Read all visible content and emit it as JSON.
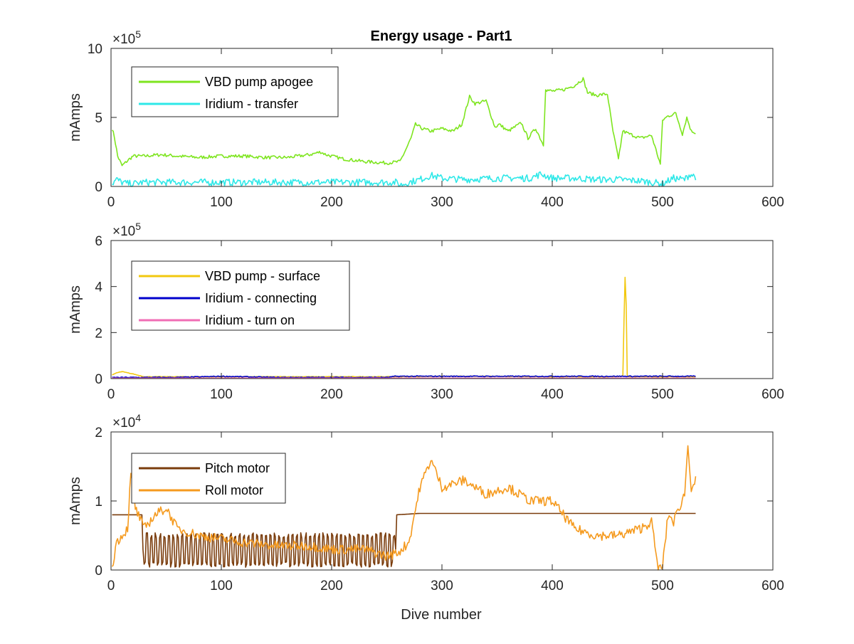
{
  "page": {
    "title": "Energy usage - Part1",
    "xlabel": "Dive number"
  },
  "chart_data": [
    {
      "type": "line",
      "title": "Energy usage - Part1",
      "xlabel": "",
      "ylabel": "mAmps",
      "xlim": [
        0,
        600
      ],
      "ylim": [
        0,
        10
      ],
      "y_exponent_label": "×10",
      "y_exponent_power": "5",
      "xticks": [
        "0",
        "100",
        "200",
        "300",
        "400",
        "500",
        "600"
      ],
      "yticks": [
        "0",
        "5",
        "10"
      ],
      "legend_position": "top-left",
      "series": [
        {
          "name": "VBD pump apogee",
          "color": "#7ee51f",
          "x": [
            1,
            3,
            6,
            10,
            14,
            20,
            30,
            45,
            60,
            80,
            100,
            120,
            140,
            160,
            180,
            190,
            195,
            200,
            210,
            230,
            250,
            262,
            268,
            272,
            276,
            282,
            290,
            300,
            310,
            318,
            325,
            330,
            340,
            348,
            352,
            360,
            372,
            378,
            385,
            392,
            394,
            400,
            410,
            420,
            428,
            432,
            440,
            450,
            455,
            460,
            464,
            470,
            480,
            490,
            498,
            500,
            505,
            512,
            518,
            522,
            526,
            530
          ],
          "values": [
            4.2,
            3.6,
            2.2,
            1.5,
            1.8,
            2.2,
            2.2,
            2.3,
            2.2,
            2.1,
            2.2,
            2.2,
            2.1,
            2.1,
            2.3,
            2.5,
            2.3,
            2.2,
            2.0,
            1.8,
            1.7,
            1.8,
            2.8,
            3.5,
            4.5,
            4.2,
            4.0,
            4.2,
            4.0,
            4.5,
            6.5,
            6.0,
            6.2,
            4.3,
            4.5,
            4.0,
            4.6,
            3.5,
            4.2,
            3.0,
            7.0,
            6.9,
            7.0,
            7.3,
            7.8,
            6.8,
            6.6,
            6.7,
            4.0,
            2.0,
            4.0,
            3.8,
            3.5,
            3.7,
            1.6,
            4.8,
            5.1,
            5.3,
            3.8,
            5.0,
            4.0,
            3.9
          ]
        },
        {
          "name": "Iridium - transfer",
          "color": "#2ee8e8",
          "x": [
            1,
            5,
            10,
            15,
            20,
            30,
            60,
            100,
            150,
            200,
            230,
            258,
            262,
            270,
            280,
            290,
            300,
            320,
            350,
            380,
            390,
            400,
            420,
            440,
            460,
            480,
            500,
            510,
            520,
            525,
            530
          ],
          "values": [
            0.2,
            0.5,
            0.3,
            0.2,
            0.2,
            0.3,
            0.3,
            0.3,
            0.3,
            0.3,
            0.3,
            0.3,
            0.1,
            0.3,
            0.5,
            0.8,
            0.6,
            0.5,
            0.6,
            0.6,
            0.9,
            0.6,
            0.6,
            0.5,
            0.5,
            0.4,
            0.2,
            0.6,
            0.5,
            0.9,
            0.7
          ]
        }
      ]
    },
    {
      "type": "line",
      "title": "",
      "xlabel": "",
      "ylabel": "mAmps",
      "xlim": [
        0,
        600
      ],
      "ylim": [
        0,
        6
      ],
      "y_exponent_label": "×10",
      "y_exponent_power": "5",
      "xticks": [
        "0",
        "100",
        "200",
        "300",
        "400",
        "500",
        "600"
      ],
      "yticks": [
        "0",
        "2",
        "4",
        "6"
      ],
      "legend_position": "top-left",
      "series": [
        {
          "name": "VBD pump - surface",
          "color": "#f2c80f",
          "x": [
            1,
            5,
            10,
            20,
            30,
            60,
            100,
            150,
            200,
            250,
            300,
            350,
            400,
            450,
            464,
            465,
            466,
            467,
            468,
            470,
            480,
            500,
            520,
            530
          ],
          "values": [
            0.15,
            0.25,
            0.3,
            0.2,
            0.08,
            0.08,
            0.08,
            0.08,
            0.08,
            0.08,
            0.1,
            0.1,
            0.08,
            0.08,
            0.1,
            2.5,
            4.4,
            3.2,
            0.1,
            0.08,
            0.08,
            0.08,
            0.08,
            0.08
          ]
        },
        {
          "name": "Iridium - connecting",
          "color": "#0000cc",
          "x": [
            1,
            30,
            60,
            100,
            150,
            200,
            250,
            258,
            270,
            300,
            350,
            400,
            450,
            500,
            530
          ],
          "values": [
            0.05,
            0.05,
            0.05,
            0.1,
            0.05,
            0.05,
            0.05,
            0.1,
            0.1,
            0.1,
            0.1,
            0.1,
            0.1,
            0.1,
            0.1
          ]
        },
        {
          "name": "Iridium - turn on",
          "color": "#f06eb4",
          "x": [
            1,
            100,
            200,
            300,
            400,
            500,
            530
          ],
          "values": [
            0.02,
            0.02,
            0.02,
            0.02,
            0.02,
            0.02,
            0.02
          ]
        }
      ]
    },
    {
      "type": "line",
      "title": "",
      "xlabel": "Dive number",
      "ylabel": "mAmps",
      "xlim": [
        0,
        600
      ],
      "ylim": [
        0,
        2
      ],
      "y_exponent_label": "×10",
      "y_exponent_power": "4",
      "xticks": [
        "0",
        "100",
        "200",
        "300",
        "400",
        "500",
        "600"
      ],
      "yticks": [
        "0",
        "1",
        "2"
      ],
      "legend_position": "top-left",
      "series": [
        {
          "name": "Pitch motor",
          "color": "#7a3c0c",
          "x": [
            1,
            28,
            29,
            258,
            259,
            280,
            300,
            350,
            400,
            450,
            500,
            530
          ],
          "values": [
            0.8,
            0.8,
            0.3,
            0.3,
            0.8,
            0.82,
            0.82,
            0.82,
            0.82,
            0.82,
            0.82,
            0.82
          ],
          "oscillation": {
            "from": 29,
            "to": 258,
            "low": 0.08,
            "high": 0.5
          }
        },
        {
          "name": "Roll motor",
          "color": "#f59a1e",
          "x": [
            1,
            5,
            10,
            15,
            18,
            22,
            30,
            40,
            50,
            60,
            80,
            100,
            120,
            150,
            180,
            200,
            230,
            250,
            260,
            270,
            280,
            290,
            300,
            320,
            340,
            360,
            380,
            400,
            420,
            440,
            460,
            480,
            490,
            496,
            500,
            505,
            510,
            520,
            523,
            526,
            530
          ],
          "values": [
            0.05,
            0.4,
            0.5,
            0.6,
            1.4,
            0.9,
            0.6,
            0.8,
            0.9,
            0.6,
            0.5,
            0.45,
            0.4,
            0.35,
            0.35,
            0.3,
            0.3,
            0.2,
            0.25,
            0.4,
            1.2,
            1.6,
            1.2,
            1.3,
            1.1,
            1.2,
            1.0,
            1.0,
            0.6,
            0.5,
            0.5,
            0.6,
            0.7,
            0.0,
            0.05,
            0.8,
            0.7,
            1.1,
            1.8,
            1.2,
            1.3
          ]
        }
      ]
    }
  ]
}
